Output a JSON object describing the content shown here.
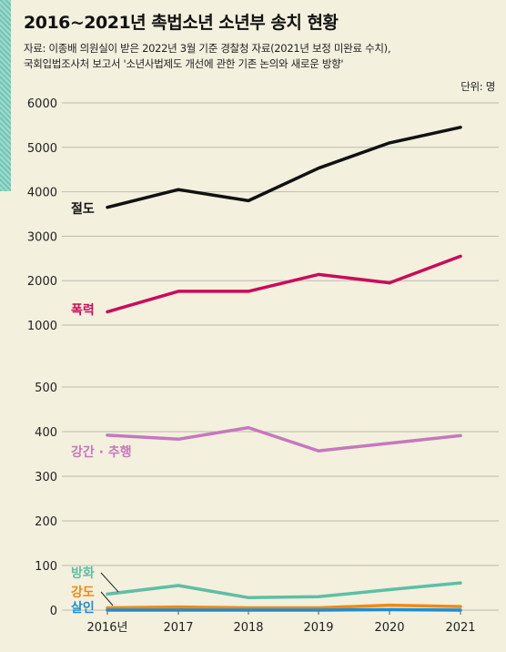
{
  "header": {
    "title": "2016~2021년 촉법소년 소년부 송치 현황",
    "source_line1": "자료: 이종배 의원실이 받은 2022년 3월 기준 경찰청 자료(2021년 보정 미완료 수치),",
    "source_line2": "국회입법조사처 보고서 '소년사법제도 개선에 관한 기존 논의와 새로운 방향'",
    "unit": "단위: 명"
  },
  "chart_data": {
    "type": "line",
    "title": "2016~2021년 촉법소년 소년부 송치 현황",
    "x_labels": [
      "2016년",
      "2017",
      "2018",
      "2019",
      "2020",
      "2021"
    ],
    "upper_panel": {
      "ylim": [
        1000,
        6000
      ],
      "yticks": [
        "6000",
        "5000",
        "4000",
        "3000",
        "2000",
        "1000"
      ],
      "series": [
        {
          "name": "절도",
          "color": "#111111",
          "values": [
            3650,
            4050,
            3800,
            4530,
            5100,
            5450
          ]
        },
        {
          "name": "폭력",
          "color": "#cc0a5a",
          "values": [
            1300,
            1760,
            1760,
            2140,
            1950,
            2550
          ]
        }
      ]
    },
    "lower_panel": {
      "ylim": [
        0,
        500
      ],
      "yticks": [
        "500",
        "400",
        "300",
        "200",
        "100",
        "0"
      ],
      "series": [
        {
          "name": "강간 · 추행",
          "color": "#c678bd",
          "values": [
            392,
            383,
            409,
            357,
            374,
            391
          ]
        },
        {
          "name": "방화",
          "color": "#5dbfa5",
          "values": [
            36,
            55,
            28,
            30,
            46,
            61
          ]
        },
        {
          "name": "강도",
          "color": "#f08a14",
          "values": [
            5,
            7,
            5,
            5,
            11,
            8
          ]
        },
        {
          "name": "살인",
          "color": "#1a8ed6",
          "values": [
            0,
            0,
            0,
            0,
            1,
            0
          ]
        }
      ]
    }
  }
}
